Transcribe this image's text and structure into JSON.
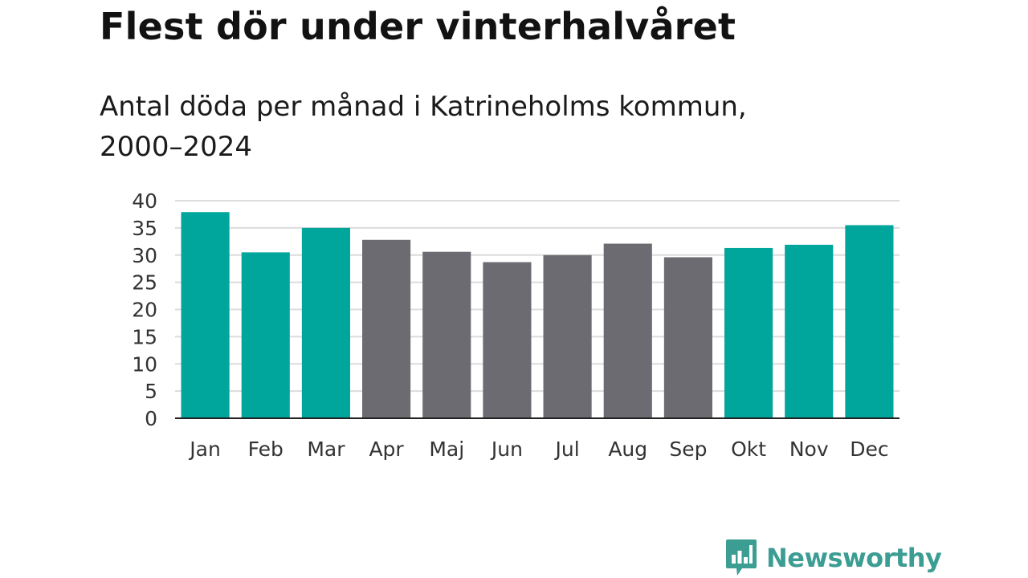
{
  "header": {
    "title": "Flest dör under vinterhalvåret",
    "subtitle": "Antal döda per månad i Katrineholms kommun, 2000–2024"
  },
  "brand": {
    "name": "Newsworthy",
    "icon": "newsworthy-chart-bubble-icon",
    "color": "#3c9d93"
  },
  "colors": {
    "winter": "#00a59b",
    "summer": "#6c6b72",
    "grid": "#dcdcdc",
    "axis": "#222222"
  },
  "chart_data": {
    "type": "bar",
    "title": "Flest dör under vinterhalvåret",
    "subtitle": "Antal döda per månad i Katrineholms kommun, 2000–2024",
    "xlabel": "",
    "ylabel": "",
    "categories": [
      "Jan",
      "Feb",
      "Mar",
      "Apr",
      "Maj",
      "Jun",
      "Jul",
      "Aug",
      "Sep",
      "Okt",
      "Nov",
      "Dec"
    ],
    "values": [
      37.9,
      30.5,
      35.0,
      32.8,
      30.6,
      28.7,
      30.0,
      32.1,
      29.6,
      31.3,
      31.9,
      35.5
    ],
    "groups": [
      "winter",
      "winter",
      "winter",
      "summer",
      "summer",
      "summer",
      "summer",
      "summer",
      "summer",
      "winter",
      "winter",
      "winter"
    ],
    "yticks": [
      0,
      5,
      10,
      15,
      20,
      25,
      30,
      35,
      40
    ],
    "ylim": [
      0,
      40
    ],
    "grid": true,
    "legend": "none"
  }
}
